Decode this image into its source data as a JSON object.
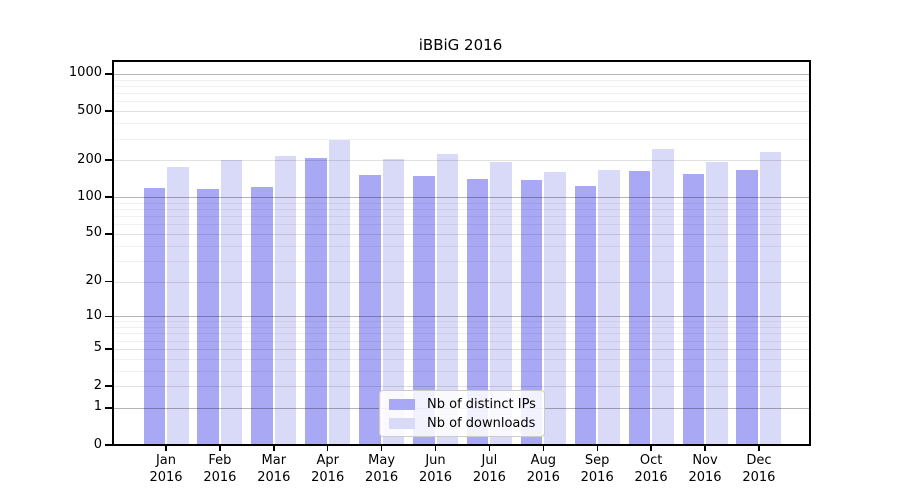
{
  "figure": {
    "title": "iBBiG 2016"
  },
  "chart_data": {
    "type": "bar",
    "title": "iBBiG 2016",
    "categories": [
      "Jan 2016",
      "Feb 2016",
      "Mar 2016",
      "Apr 2016",
      "May 2016",
      "Jun 2016",
      "Jul 2016",
      "Aug 2016",
      "Sep 2016",
      "Oct 2016",
      "Nov 2016",
      "Dec 2016"
    ],
    "x_tick_line1": [
      "Jan",
      "Feb",
      "Mar",
      "Apr",
      "May",
      "Jun",
      "Jul",
      "Aug",
      "Sep",
      "Oct",
      "Nov",
      "Dec"
    ],
    "x_tick_line2": "2016",
    "series": [
      {
        "name": "Nb of distinct IPs",
        "color": "#a8a8f5",
        "values": [
          119,
          117,
          120,
          208,
          153,
          150,
          141,
          137,
          124,
          164,
          154,
          166
        ]
      },
      {
        "name": "Nb of downloads",
        "color": "#d9d9f8",
        "values": [
          176,
          201,
          218,
          293,
          204,
          224,
          194,
          161,
          167,
          247,
          193,
          232
        ]
      }
    ],
    "y_axis": {
      "ticks": [
        0,
        1,
        2,
        5,
        10,
        20,
        50,
        100,
        200,
        500,
        1000
      ],
      "scale": "log10(1+y)",
      "range": [
        0,
        1300
      ]
    },
    "xlabel": "",
    "ylabel": "",
    "grid": true,
    "legend_position": "bottom-center"
  },
  "legend": {
    "items": [
      {
        "label": "Nb of distinct IPs",
        "color": "#a8a8f5"
      },
      {
        "label": "Nb of downloads",
        "color": "#d9d9f8"
      }
    ]
  },
  "colors": {
    "bar_distinct_ips": "#a8a8f5",
    "bar_downloads": "#d9d9f8",
    "grid_major": "#b4b4b4",
    "grid_mid": "#e1e1e1",
    "grid_minor": "#f0f0f0",
    "axis": "#000000",
    "background": "#ffffff"
  }
}
